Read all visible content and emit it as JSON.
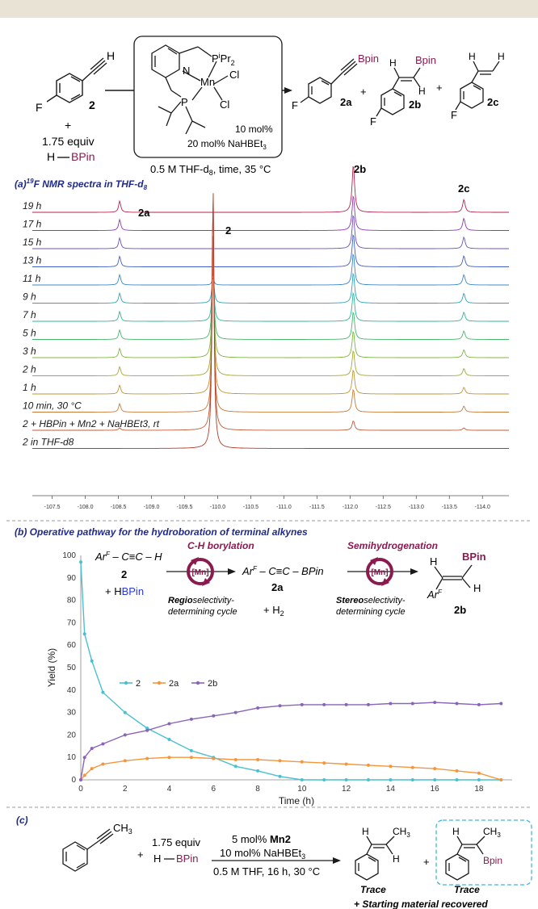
{
  "scheme": {
    "reagent_label": "2",
    "plus": "+",
    "equiv": "1.75 equiv",
    "hbpin_h": "H",
    "hbpin_b": "BPin",
    "alkyne_h": "H",
    "fluoro": "F",
    "catalyst_p1": "P",
    "catalyst_p1_sub": "i",
    "catalyst_p1_tail": "Pr",
    "catalyst_p1_sub2": "2",
    "catalyst_n": "N",
    "catalyst_mn": "Mn",
    "catalyst_cl1": "Cl",
    "catalyst_cl2": "Cl",
    "catalyst_p2": "P",
    "loading": "10 mol%",
    "additive": "20 mol% NaHBEt",
    "additive_sub": "3",
    "conditions": "0.5 M THF-d",
    "conditions_sub": "8",
    "conditions_tail": ", time, 35 °C",
    "prod_2a_label": "2a",
    "prod_2b_label": "2b",
    "prod_2c_label": "2c",
    "bpin": "Bpin"
  },
  "panel_a": {
    "title_prefix": "(a)",
    "title_sup": "19",
    "title": "F NMR spectra in THF-d",
    "title_sub": "8",
    "peak_labels": [
      "2a",
      "2",
      "2b",
      "2c"
    ],
    "traces": [
      {
        "label": "19 h",
        "color": "#b3264a"
      },
      {
        "label": "17 h",
        "color": "#8e3ab0"
      },
      {
        "label": "15 h",
        "color": "#6b4fc4"
      },
      {
        "label": "13 h",
        "color": "#4060c8"
      },
      {
        "label": "11 h",
        "color": "#3a86c9"
      },
      {
        "label": "9 h",
        "color": "#2fa3b6"
      },
      {
        "label": "7 h",
        "color": "#2fb39a"
      },
      {
        "label": "5 h",
        "color": "#48b56c"
      },
      {
        "label": "3 h",
        "color": "#7cb540"
      },
      {
        "label": "2 h",
        "color": "#a3a834"
      },
      {
        "label": "1 h",
        "color": "#c09436"
      },
      {
        "label": "10 min, 30 °C",
        "color": "#c9793a"
      },
      {
        "label": "2 + HBPin + Mn2 + NaHBEt3, rt",
        "color": "#c45a36"
      },
      {
        "label": "2 in THF-d8",
        "color": "#b23a2a"
      }
    ],
    "x_ticks": [
      "-107.5",
      "-108.0",
      "-108.5",
      "-109.0",
      "-109.5",
      "-110.0",
      "-110.5",
      "-111.0",
      "-111.5",
      "-112.0",
      "-112.5",
      "-113.0",
      "-113.5",
      "-114.0"
    ]
  },
  "panel_b": {
    "title": "(b) Operative pathway for the hydroboration of terminal alkynes",
    "step1_title": "C-H borylation",
    "step2_title": "Semihydrogenation",
    "mn": "[Mn]",
    "s1_formula": "Ar",
    "s1_sup": "F",
    "s1_tail": " – C≡C – H",
    "s1_label": "2",
    "s1_plus_h": "+ H",
    "s1_plus_b": "BPin",
    "s2_formula": "Ar",
    "s2_sup": "F",
    "s2_tail": " – C≡C – BPin",
    "s2_label": "2a",
    "s2_plus": "+ H",
    "s2_plus_sub": "2",
    "regio_bold": "Regio",
    "regio_rest": "selectivity-",
    "regio_line2": "determining cycle",
    "stereo_bold": "Stereo",
    "stereo_rest": "selectivity-",
    "stereo_line2": "determining cycle",
    "prod_h1": "H",
    "prod_h2": "H",
    "prod_ar": "Ar",
    "prod_ar_sup": "F",
    "prod_bpin": "BPin",
    "prod_label": "2b"
  },
  "chart_data": {
    "type": "line",
    "xlabel": "Time (h)",
    "ylabel": "Yield (%)",
    "xlim": [
      0,
      19.5
    ],
    "ylim": [
      0,
      100
    ],
    "x_ticks": [
      0,
      2,
      4,
      6,
      8,
      10,
      12,
      14,
      16,
      18
    ],
    "y_ticks": [
      0,
      10,
      20,
      30,
      40,
      50,
      60,
      70,
      80,
      90,
      100
    ],
    "legend_position": "center-left",
    "series": [
      {
        "name": "2",
        "color": "#4bbfd1",
        "x": [
          0,
          0.17,
          0.5,
          1.0,
          2.0,
          3.0,
          4.0,
          5.0,
          6.0,
          7.0,
          8.0,
          9.0,
          10.0,
          11.0,
          12.0,
          13.0,
          14.0,
          15.0,
          16.0,
          17.0,
          18.0,
          19.0
        ],
        "y": [
          97,
          65,
          53,
          39,
          30,
          23,
          18,
          13,
          10,
          6,
          4,
          1.5,
          0,
          0,
          0,
          0,
          0,
          0,
          0,
          0,
          0,
          0
        ]
      },
      {
        "name": "2a",
        "color": "#f5963c",
        "x": [
          0,
          0.17,
          0.5,
          1.0,
          2.0,
          3.0,
          4.0,
          5.0,
          6.0,
          7.0,
          8.0,
          9.0,
          10.0,
          11.0,
          12.0,
          13.0,
          14.0,
          15.0,
          16.0,
          17.0,
          18.0,
          19.0
        ],
        "y": [
          0,
          2,
          5,
          7,
          8.5,
          9.5,
          10,
          10,
          9.5,
          9,
          9,
          8.5,
          8,
          7.5,
          7,
          6.5,
          6,
          5.5,
          5,
          4,
          3,
          0
        ]
      },
      {
        "name": "2b",
        "color": "#8a64b8",
        "x": [
          0,
          0.17,
          0.5,
          1.0,
          2.0,
          3.0,
          4.0,
          5.0,
          6.0,
          7.0,
          8.0,
          9.0,
          10.0,
          11.0,
          12.0,
          13.0,
          14.0,
          15.0,
          16.0,
          17.0,
          18.0,
          19.0
        ],
        "y": [
          0,
          10,
          14,
          16,
          20,
          22,
          25,
          27,
          28.5,
          30,
          32,
          33,
          33.5,
          33.5,
          33.5,
          33.5,
          34,
          34,
          34.5,
          34,
          33.5,
          34
        ]
      }
    ]
  },
  "panel_c": {
    "title": "(c)",
    "ch3": "CH",
    "ch3_sub": "3",
    "plus": "+",
    "equiv": "1.75 equiv",
    "hb_h": "H",
    "hb_b": "BPin",
    "cat_line1_a": "5 mol% ",
    "cat_line1_b": "Mn2",
    "cat_line2": "10 mol% NaHBEt",
    "cat_line2_sub": "3",
    "conditions": "0.5 M THF, 16 h, 30 °C",
    "p1_h1": "H",
    "p1_h2": "H",
    "p1_ch3": "CH",
    "p1_ch3_sub": "3",
    "p2_h": "H",
    "p2_ch3": "CH",
    "p2_ch3_sub": "3",
    "p2_bpin": "Bpin",
    "trace1": "Trace",
    "trace2": "Trace",
    "recovered": "+ Starting material recovered"
  }
}
